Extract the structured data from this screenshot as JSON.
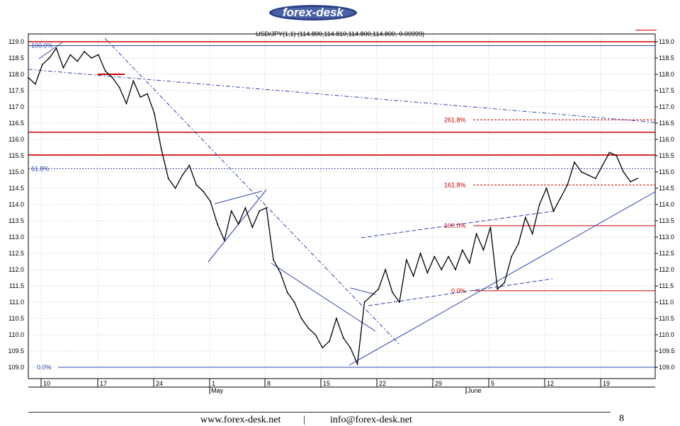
{
  "header": {
    "logo_text": "forex-desk"
  },
  "chart_data": {
    "type": "line",
    "title": "USD/JPY(1,1) (114.800,114.810,114.800,114.800,-0.00999)",
    "xlabel": "",
    "ylabel": "",
    "ylim": [
      109.0,
      119.0
    ],
    "y_ticks": [
      "119.0",
      "118.5",
      "118.0",
      "117.5",
      "117.0",
      "116.5",
      "116.0",
      "115.5",
      "115.0",
      "114.5",
      "114.0",
      "113.5",
      "113.0",
      "112.5",
      "112.0",
      "111.5",
      "111.0",
      "110.5",
      "110.0",
      "109.5",
      "109.0"
    ],
    "x_ticks": [
      "10",
      "17",
      "24",
      "1",
      "8",
      "15",
      "22",
      "29",
      "5",
      "12",
      "19"
    ],
    "month_labels": [
      "May",
      "June"
    ],
    "grid": true,
    "series": [
      {
        "values": [
          117.9,
          117.7,
          118.3,
          118.5,
          118.8,
          118.2,
          118.6,
          118.4,
          118.7,
          118.5,
          118.6,
          118.1,
          117.9,
          117.6,
          117.1,
          117.8,
          117.3,
          117.4,
          116.8,
          115.7,
          114.8,
          114.5,
          114.9,
          115.2,
          114.6,
          114.4,
          114.1,
          113.4,
          112.9,
          113.8,
          113.4,
          113.9,
          113.3,
          113.8,
          113.9,
          112.3,
          111.9,
          111.3,
          111.0,
          110.5,
          110.2,
          110.0,
          109.6,
          109.8,
          110.5,
          109.9,
          109.6,
          109.1,
          111.0,
          111.2,
          111.4,
          112.0,
          111.3,
          111.0,
          112.3,
          111.8,
          112.5,
          111.9,
          112.4,
          112.0,
          112.4,
          112.0,
          112.6,
          112.2,
          113.1,
          112.6,
          113.3,
          111.4,
          111.6,
          112.4,
          112.8,
          113.6,
          113.1,
          114.0,
          114.5,
          113.8,
          114.2,
          114.6,
          115.3,
          115.0,
          114.9,
          114.8,
          115.2,
          115.6,
          115.5,
          115.0,
          114.7,
          114.8
        ],
        "color": "#000000"
      }
    ],
    "reference_lines": [
      {
        "y": 119.0,
        "label": "",
        "color": "#cc0000",
        "style": "solid"
      },
      {
        "y": 118.88,
        "label": "100.0%",
        "color": "#3344aa",
        "style": "solid"
      },
      {
        "y": 116.22,
        "label": "",
        "color": "#cc0000",
        "style": "solid"
      },
      {
        "y": 115.52,
        "label": "",
        "color": "#cc0000",
        "style": "solid"
      },
      {
        "y": 115.1,
        "label": "61.8%",
        "color": "#3344aa",
        "style": "dotted"
      },
      {
        "y": 109.0,
        "label": "0.0%",
        "color": "#3344aa",
        "style": "solid"
      }
    ],
    "fib_labels": [
      {
        "y": 116.6,
        "label": "261.8%",
        "color": "#cc0000"
      },
      {
        "y": 114.6,
        "label": "161.8%",
        "color": "#cc0000"
      },
      {
        "y": 113.35,
        "label": "100.0%",
        "color": "#cc0000"
      },
      {
        "y": 111.35,
        "label": "0.0%",
        "color": "#cc0000"
      }
    ]
  },
  "footer": {
    "website": "www.forex-desk.net",
    "separator": "|",
    "email": "info@forex-desk.net",
    "page_number": "8"
  },
  "colors": {
    "red": "#cc0000",
    "blue": "#3344aa",
    "price": "#000000"
  }
}
